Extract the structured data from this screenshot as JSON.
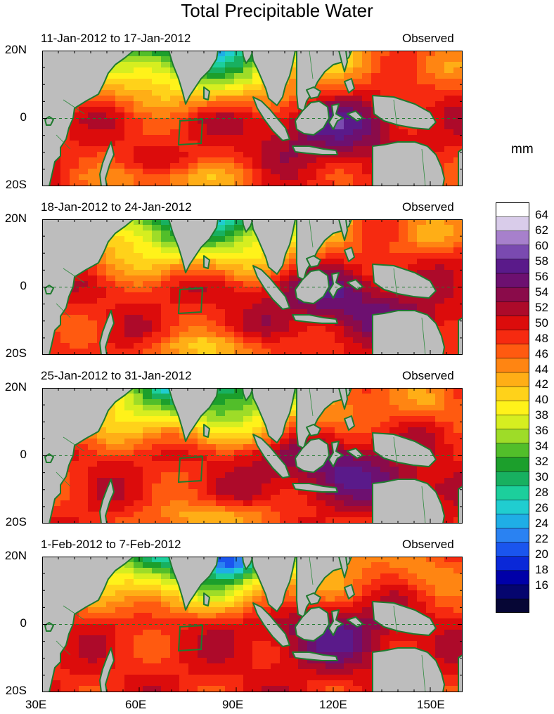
{
  "title": "Total Precipitable Water",
  "colors": {
    "land": "#bdbdbd",
    "coast": "#1f7a2e",
    "border": "#2f8a3e",
    "box": "#1f7a2e",
    "equator": "#1f7a2e",
    "palette": [
      "#060635",
      "#05056e",
      "#0000a8",
      "#0a28d8",
      "#1a55ee",
      "#2a82f2",
      "#1faee6",
      "#20cdd0",
      "#1ccf9c",
      "#18b060",
      "#1c9f2c",
      "#52be2a",
      "#9edc28",
      "#d6ee20",
      "#fff21a",
      "#ffd21a",
      "#ffae16",
      "#ff8512",
      "#ff5a10",
      "#f62a10",
      "#dc0c0c",
      "#ad0a2a",
      "#8a0b4a",
      "#6d1070",
      "#5a1a8a",
      "#7a4ab0",
      "#a780cc",
      "#d9ccea",
      "#ffffff"
    ]
  },
  "panels": [
    {
      "period": "11-Jan-2012 to 17-Jan-2012",
      "label": "Observed"
    },
    {
      "period": "18-Jan-2012 to 24-Jan-2012",
      "label": "Observed"
    },
    {
      "period": "25-Jan-2012 to 31-Jan-2012",
      "label": "Observed"
    },
    {
      "period": "1-Feb-2012 to 7-Feb-2012",
      "label": "Observed"
    }
  ],
  "lat_labels": [
    "20N",
    "0",
    "20S"
  ],
  "lon_labels": [
    "30E",
    "60E",
    "90E",
    "120E",
    "150E"
  ],
  "colorbar": {
    "unit": "mm",
    "labels": [
      "64",
      "62",
      "60",
      "58",
      "56",
      "54",
      "52",
      "50",
      "48",
      "46",
      "44",
      "42",
      "40",
      "38",
      "36",
      "34",
      "32",
      "30",
      "28",
      "26",
      "24",
      "22",
      "20",
      "18",
      "16"
    ]
  }
}
